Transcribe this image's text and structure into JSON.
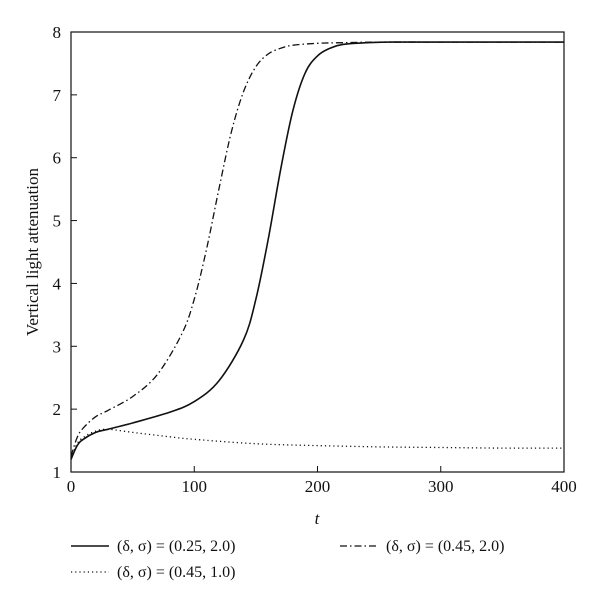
{
  "chart_data": {
    "type": "line",
    "xlabel": "t",
    "ylabel": "Vertical light attenuation",
    "xlim": [
      0,
      400
    ],
    "ylim": [
      1,
      8
    ],
    "xticks": [
      "0",
      "100",
      "200",
      "300",
      "400"
    ],
    "yticks": [
      "1",
      "2",
      "3",
      "4",
      "5",
      "6",
      "7",
      "8"
    ],
    "grid": false,
    "legend_position": "bottom",
    "series": [
      {
        "name": "(δ, σ) = (0.25, 2.0)",
        "style": "solid",
        "x": [
          0,
          5,
          10,
          20,
          30,
          50,
          80,
          100,
          120,
          140,
          150,
          160,
          170,
          180,
          190,
          200,
          210,
          220,
          240,
          260,
          300,
          400
        ],
        "y": [
          1.2,
          1.42,
          1.52,
          1.63,
          1.68,
          1.78,
          1.95,
          2.12,
          2.45,
          3.1,
          3.75,
          4.7,
          5.8,
          6.75,
          7.35,
          7.62,
          7.74,
          7.8,
          7.83,
          7.84,
          7.84,
          7.84
        ]
      },
      {
        "name": "(δ, σ) = (0.45, 2.0)",
        "style": "dashdot",
        "x": [
          0,
          5,
          10,
          20,
          30,
          50,
          70,
          90,
          100,
          110,
          120,
          130,
          140,
          150,
          160,
          170,
          180,
          200,
          220,
          250,
          300,
          400
        ],
        "y": [
          1.25,
          1.55,
          1.7,
          1.88,
          1.98,
          2.2,
          2.55,
          3.2,
          3.75,
          4.55,
          5.5,
          6.4,
          7.05,
          7.45,
          7.65,
          7.74,
          7.79,
          7.82,
          7.83,
          7.84,
          7.84,
          7.84
        ]
      },
      {
        "name": "(δ, σ) = (0.45, 1.0)",
        "style": "dotted",
        "x": [
          0,
          5,
          10,
          20,
          30,
          50,
          80,
          100,
          150,
          200,
          250,
          300,
          350,
          400
        ],
        "y": [
          1.22,
          1.45,
          1.55,
          1.65,
          1.68,
          1.63,
          1.56,
          1.52,
          1.45,
          1.42,
          1.4,
          1.39,
          1.38,
          1.38
        ]
      }
    ]
  }
}
